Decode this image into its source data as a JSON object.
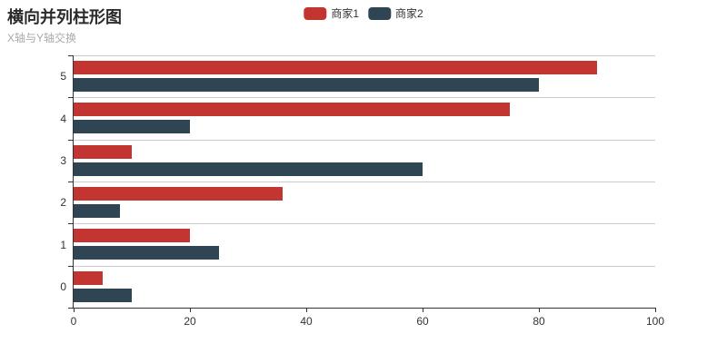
{
  "chart_data": {
    "type": "bar",
    "orientation": "horizontal",
    "title": "横向并列柱形图",
    "subtitle": "X轴与Y轴交换",
    "categories": [
      "0",
      "1",
      "2",
      "3",
      "4",
      "5"
    ],
    "series": [
      {
        "name": "商家1",
        "color": "#c23531",
        "values": [
          5,
          20,
          36,
          10,
          75,
          90
        ]
      },
      {
        "name": "商家2",
        "color": "#2f4554",
        "values": [
          10,
          25,
          8,
          60,
          20,
          80
        ]
      }
    ],
    "xlabel": "",
    "ylabel": "",
    "xlim": [
      0,
      100
    ],
    "x_ticks": [
      0,
      20,
      40,
      60,
      80,
      100
    ],
    "grid": "horizontal-split-lines-only",
    "legend_position": "top-center",
    "colors": {
      "axis_line": "#333333",
      "split_line": "#cccccc",
      "axis_label": "#333333",
      "title_text": "#2b2b2b",
      "subtitle_text": "#aaaaaa"
    }
  }
}
